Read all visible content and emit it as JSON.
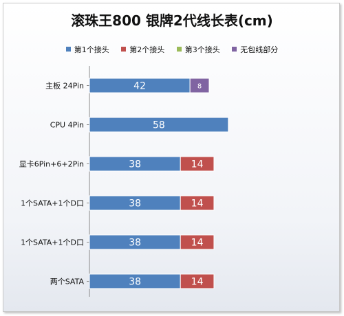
{
  "chart_data": {
    "type": "bar",
    "orientation": "horizontal",
    "stacked": true,
    "title": "滚珠王800 银牌2代线长表(cm)",
    "xlabel": "",
    "ylabel": "",
    "xlim": [
      0,
      70
    ],
    "grid": false,
    "legend_position": "top",
    "categories": [
      "主板 24Pin",
      "CPU 4Pin",
      "显卡6Pin+6+2Pin",
      "1个SATA+1个D口",
      "1个SATA+1个D口",
      "两个SATA"
    ],
    "series": [
      {
        "name": "第1个接头",
        "color": "#4f81bd",
        "values": [
          42,
          58,
          38,
          38,
          38,
          38
        ]
      },
      {
        "name": "第2个接头",
        "color": "#c0504d",
        "values": [
          null,
          null,
          14,
          14,
          14,
          14
        ]
      },
      {
        "name": "第3个接头",
        "color": "#9bbb59",
        "values": [
          null,
          null,
          null,
          null,
          null,
          null
        ]
      },
      {
        "name": "无包线部分",
        "color": "#8064a2",
        "values": [
          8,
          null,
          null,
          null,
          null,
          null
        ]
      }
    ]
  }
}
